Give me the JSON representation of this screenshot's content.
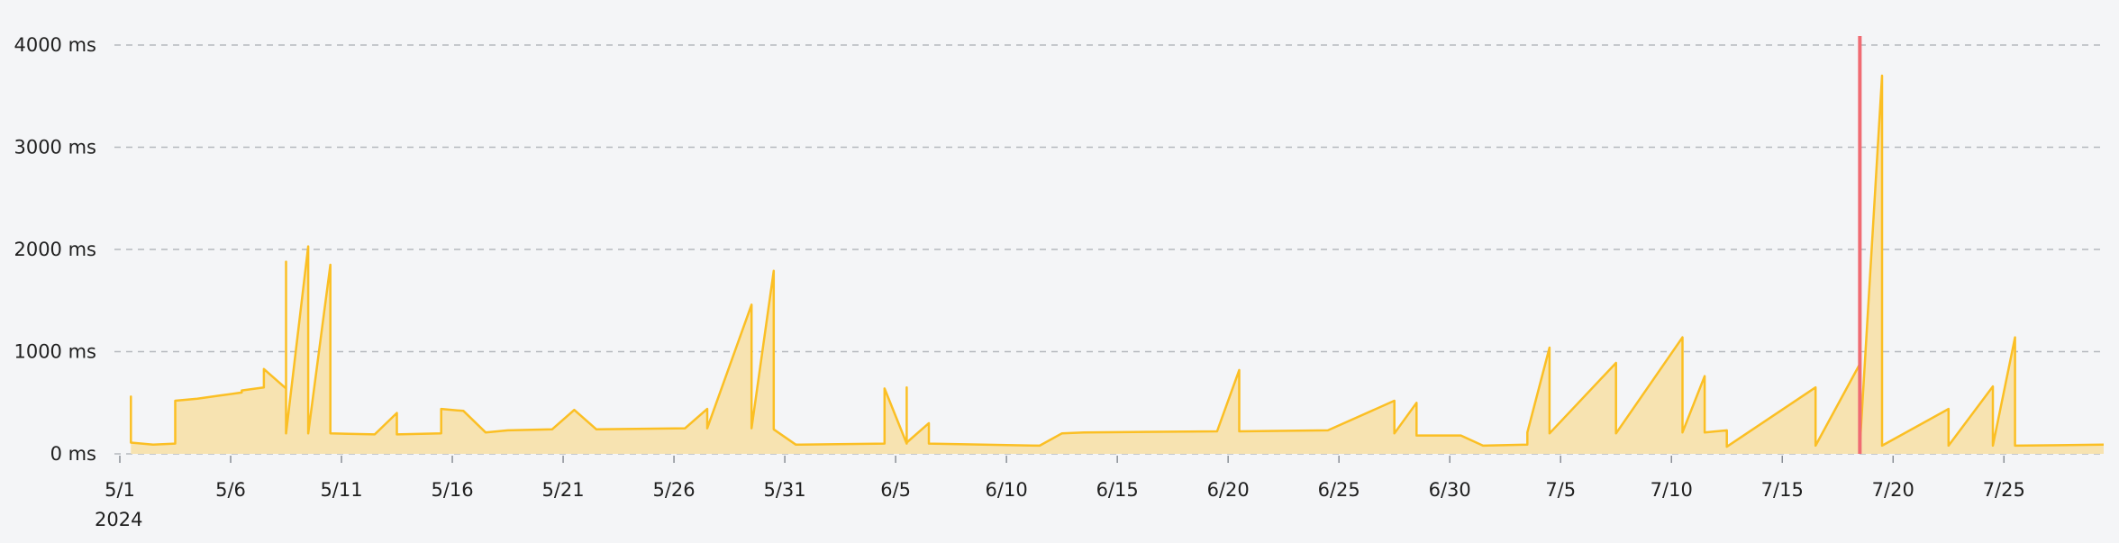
{
  "chart_data": {
    "type": "area",
    "title": "",
    "xlabel": "",
    "ylabel": "",
    "unit": "ms",
    "year_label": "2024",
    "x_range": [
      "2024-05-01",
      "2024-07-29"
    ],
    "ylim": [
      0,
      4000
    ],
    "y_ticks": [
      {
        "value": 0,
        "label": "0 ms"
      },
      {
        "value": 1000,
        "label": "1000 ms"
      },
      {
        "value": 2000,
        "label": "2000 ms"
      },
      {
        "value": 3000,
        "label": "3000 ms"
      },
      {
        "value": 4000,
        "label": "4000 ms"
      }
    ],
    "x_ticks": [
      {
        "date": "2024-05-01",
        "label": "5/1"
      },
      {
        "date": "2024-05-06",
        "label": "5/6"
      },
      {
        "date": "2024-05-11",
        "label": "5/11"
      },
      {
        "date": "2024-05-16",
        "label": "5/16"
      },
      {
        "date": "2024-05-21",
        "label": "5/21"
      },
      {
        "date": "2024-05-26",
        "label": "5/26"
      },
      {
        "date": "2024-05-31",
        "label": "5/31"
      },
      {
        "date": "2024-06-05",
        "label": "6/5"
      },
      {
        "date": "2024-06-10",
        "label": "6/10"
      },
      {
        "date": "2024-06-15",
        "label": "6/15"
      },
      {
        "date": "2024-06-20",
        "label": "6/20"
      },
      {
        "date": "2024-06-25",
        "label": "6/25"
      },
      {
        "date": "2024-06-30",
        "label": "6/30"
      },
      {
        "date": "2024-07-05",
        "label": "7/5"
      },
      {
        "date": "2024-07-10",
        "label": "7/10"
      },
      {
        "date": "2024-07-15",
        "label": "7/15"
      },
      {
        "date": "2024-07-20",
        "label": "7/20"
      },
      {
        "date": "2024-07-25",
        "label": "7/25"
      }
    ],
    "grid": true,
    "series": [
      {
        "color": "#fbbf24",
        "fill_color": "#f7e3b1",
        "points": [
          [
            "2024-05-01",
            120
          ],
          [
            "2024-05-01",
            560
          ],
          [
            "2024-05-01",
            110
          ],
          [
            "2024-05-02",
            90
          ],
          [
            "2024-05-03",
            100
          ],
          [
            "2024-05-03",
            520
          ],
          [
            "2024-05-04",
            540
          ],
          [
            "2024-05-05",
            570
          ],
          [
            "2024-05-06",
            600
          ],
          [
            "2024-05-06",
            620
          ],
          [
            "2024-05-07",
            650
          ],
          [
            "2024-05-07",
            830
          ],
          [
            "2024-05-08",
            640
          ],
          [
            "2024-05-08",
            1880
          ],
          [
            "2024-05-08",
            350
          ],
          [
            "2024-05-08",
            200
          ],
          [
            "2024-05-09",
            2030
          ],
          [
            "2024-05-09",
            200
          ],
          [
            "2024-05-10",
            1850
          ],
          [
            "2024-05-10",
            200
          ],
          [
            "2024-05-12",
            190
          ],
          [
            "2024-05-13",
            400
          ],
          [
            "2024-05-13",
            190
          ],
          [
            "2024-05-15",
            200
          ],
          [
            "2024-05-15",
            440
          ],
          [
            "2024-05-16",
            420
          ],
          [
            "2024-05-17",
            210
          ],
          [
            "2024-05-18",
            230
          ],
          [
            "2024-05-20",
            240
          ],
          [
            "2024-05-21",
            430
          ],
          [
            "2024-05-22",
            240
          ],
          [
            "2024-05-26",
            250
          ],
          [
            "2024-05-27",
            440
          ],
          [
            "2024-05-27",
            250
          ],
          [
            "2024-05-29",
            1460
          ],
          [
            "2024-05-29",
            250
          ],
          [
            "2024-05-30",
            1790
          ],
          [
            "2024-05-30",
            240
          ],
          [
            "2024-05-31",
            90
          ],
          [
            "2024-06-04",
            100
          ],
          [
            "2024-06-04",
            640
          ],
          [
            "2024-06-05",
            100
          ],
          [
            "2024-06-05",
            650
          ],
          [
            "2024-06-05",
            110
          ],
          [
            "2024-06-06",
            300
          ],
          [
            "2024-06-06",
            100
          ],
          [
            "2024-06-11",
            80
          ],
          [
            "2024-06-12",
            200
          ],
          [
            "2024-06-13",
            210
          ],
          [
            "2024-06-19",
            220
          ],
          [
            "2024-06-20",
            820
          ],
          [
            "2024-06-20",
            220
          ],
          [
            "2024-06-24",
            230
          ],
          [
            "2024-06-27",
            520
          ],
          [
            "2024-06-27",
            200
          ],
          [
            "2024-06-28",
            500
          ],
          [
            "2024-06-28",
            180
          ],
          [
            "2024-06-30",
            180
          ],
          [
            "2024-07-01",
            80
          ],
          [
            "2024-07-03",
            90
          ],
          [
            "2024-07-03",
            210
          ],
          [
            "2024-07-04",
            1040
          ],
          [
            "2024-07-04",
            200
          ],
          [
            "2024-07-07",
            890
          ],
          [
            "2024-07-07",
            200
          ],
          [
            "2024-07-10",
            1140
          ],
          [
            "2024-07-10",
            210
          ],
          [
            "2024-07-11",
            760
          ],
          [
            "2024-07-11",
            210
          ],
          [
            "2024-07-12",
            230
          ],
          [
            "2024-07-12",
            70
          ],
          [
            "2024-07-16",
            650
          ],
          [
            "2024-07-16",
            80
          ],
          [
            "2024-07-18",
            880
          ],
          [
            "2024-07-18",
            80
          ],
          [
            "2024-07-19",
            3700
          ],
          [
            "2024-07-19",
            80
          ],
          [
            "2024-07-22",
            440
          ],
          [
            "2024-07-22",
            80
          ],
          [
            "2024-07-24",
            660
          ],
          [
            "2024-07-24",
            80
          ],
          [
            "2024-07-25",
            1140
          ],
          [
            "2024-07-25",
            80
          ],
          [
            "2024-07-29",
            90
          ]
        ]
      }
    ],
    "marker": {
      "date": "2024-07-18",
      "color": "#f06b73"
    }
  }
}
